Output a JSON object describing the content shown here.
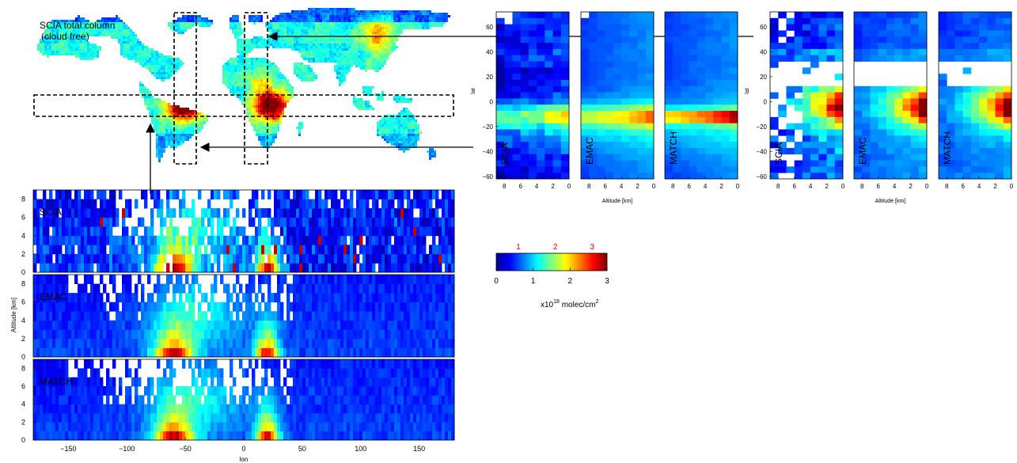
{
  "map": {
    "label_line1": "SCIA total column",
    "label_line2": "(cloud free)"
  },
  "colorbar": {
    "ticks": [
      "0",
      "1",
      "2",
      "3"
    ],
    "red_ticks": [
      "1",
      "2",
      "3"
    ],
    "unit_base": "x10",
    "unit_exp": "18",
    "unit_rest": " molec/cm",
    "unit_exp2": "2",
    "colors": [
      "#00008f",
      "#0000ff",
      "#0080ff",
      "#00ffff",
      "#80ff80",
      "#ffff00",
      "#ff8000",
      "#ff0000",
      "#800000"
    ]
  },
  "colors": {
    "arrow": "#000000",
    "box": "#000000",
    "tick_red": "#e00000",
    "coast": "#555555"
  },
  "chart_data": [
    {
      "type": "heatmap",
      "name": "longitude-altitude cross sections (tropical band)",
      "panels": [
        "SCIA",
        "EMAC",
        "MATCH"
      ],
      "x_ticks": [
        -150,
        -100,
        -50,
        0,
        50,
        100,
        150
      ],
      "xlim": [
        -180,
        180
      ],
      "xlabel": "lon",
      "y_ticks": [
        0,
        2,
        4,
        6,
        8
      ],
      "ylim": [
        0,
        9
      ],
      "ylabel": "Altitude [km]",
      "hotspots_lon": [
        -60,
        20
      ],
      "peak_value_approx": 3
    },
    {
      "type": "heatmap",
      "name": "latitude-altitude cross sections (lon ~ -60)",
      "panels": [
        "SCIA",
        "EMAC",
        "MATCH"
      ],
      "x_ticks": [
        8,
        6,
        4,
        2,
        0
      ],
      "xlim": [
        9,
        0
      ],
      "xlabel": "Altitude [km]",
      "y_ticks": [
        60,
        40,
        20,
        0,
        -20,
        -40,
        -60
      ],
      "ylim": [
        -62,
        72
      ],
      "ylabel": "lat",
      "hotspot_lat": -12
    },
    {
      "type": "heatmap",
      "name": "latitude-altitude cross sections (lon ~ 20)",
      "panels": [
        "SCIA",
        "EMAC",
        "MATCH"
      ],
      "x_ticks": [
        8,
        6,
        4,
        2,
        0
      ],
      "xlim": [
        9,
        0
      ],
      "xlabel": "Altitude [km]",
      "y_ticks": [
        60,
        40,
        20,
        0,
        -20,
        -40,
        -60
      ],
      "ylim": [
        -62,
        72
      ],
      "ylabel": "lat",
      "hotspot_lat": -5,
      "gap_lat": [
        12,
        32
      ]
    }
  ]
}
